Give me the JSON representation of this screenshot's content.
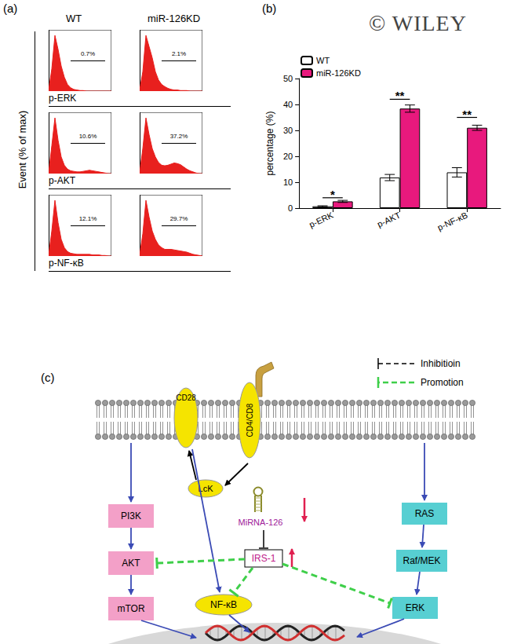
{
  "panel_labels": [
    "(a)",
    "(b)",
    "(c)"
  ],
  "watermark": "© WILEY",
  "panel_a": {
    "columns": [
      "WT",
      "miR-126KD"
    ],
    "ylabel": "Event (% of max)",
    "row_labels": [
      "p-ERK",
      "p-AKT",
      "p-NF-κB"
    ]
  },
  "chart_data": [
    {
      "type": "area",
      "color": "#e8201e",
      "xlim": [
        0,
        100
      ],
      "ylim": [
        0,
        110
      ],
      "tick_labels": false,
      "x": [
        0,
        5,
        10,
        15,
        20,
        25,
        30,
        35,
        40,
        45,
        50,
        55,
        60,
        65,
        70,
        75,
        80,
        85,
        90,
        95,
        100
      ],
      "values": [
        2,
        40,
        100,
        75,
        45,
        25,
        12,
        6,
        3,
        2,
        1,
        1,
        0,
        0,
        0,
        0,
        0,
        0,
        0,
        0,
        0
      ],
      "gate": {
        "from": 35,
        "to": 90,
        "label": "0.7%"
      }
    },
    {
      "type": "area",
      "color": "#e8201e",
      "xlim": [
        0,
        100
      ],
      "ylim": [
        0,
        110
      ],
      "tick_labels": false,
      "x": [
        0,
        5,
        10,
        15,
        20,
        25,
        30,
        35,
        40,
        45,
        50,
        55,
        60,
        65,
        70,
        75,
        80,
        85,
        90,
        95,
        100
      ],
      "values": [
        2,
        35,
        100,
        80,
        60,
        35,
        20,
        12,
        8,
        5,
        3,
        2,
        2,
        1,
        1,
        1,
        0,
        0,
        0,
        0,
        0
      ],
      "gate": {
        "from": 35,
        "to": 90,
        "label": "2.1%"
      }
    },
    {
      "type": "area",
      "color": "#e8201e",
      "xlim": [
        0,
        100
      ],
      "ylim": [
        0,
        110
      ],
      "tick_labels": false,
      "x": [
        0,
        5,
        10,
        15,
        20,
        25,
        30,
        35,
        40,
        45,
        50,
        55,
        60,
        65,
        70,
        75,
        80,
        85,
        90,
        95,
        100
      ],
      "values": [
        2,
        50,
        100,
        60,
        30,
        15,
        8,
        5,
        4,
        3,
        3,
        4,
        5,
        6,
        5,
        4,
        3,
        2,
        1,
        0,
        0
      ],
      "gate": {
        "from": 35,
        "to": 90,
        "label": "10.6%"
      }
    },
    {
      "type": "area",
      "color": "#e8201e",
      "xlim": [
        0,
        100
      ],
      "ylim": [
        0,
        110
      ],
      "tick_labels": false,
      "x": [
        0,
        5,
        10,
        15,
        20,
        25,
        30,
        35,
        40,
        45,
        50,
        55,
        60,
        65,
        70,
        75,
        80,
        85,
        90,
        95,
        100
      ],
      "values": [
        2,
        45,
        100,
        70,
        45,
        30,
        20,
        15,
        14,
        15,
        17,
        19,
        18,
        16,
        12,
        8,
        5,
        3,
        1,
        0,
        0
      ],
      "gate": {
        "from": 35,
        "to": 90,
        "label": "37.2%"
      }
    },
    {
      "type": "area",
      "color": "#e8201e",
      "xlim": [
        0,
        100
      ],
      "ylim": [
        0,
        110
      ],
      "tick_labels": false,
      "x": [
        0,
        5,
        10,
        15,
        20,
        25,
        30,
        35,
        40,
        45,
        50,
        55,
        60,
        65,
        70,
        75,
        80,
        85,
        90,
        95,
        100
      ],
      "values": [
        2,
        45,
        100,
        60,
        30,
        15,
        8,
        5,
        4,
        3,
        3,
        3,
        3,
        3,
        2,
        2,
        2,
        1,
        1,
        0,
        0
      ],
      "gate": {
        "from": 35,
        "to": 90,
        "label": "12.1%"
      }
    },
    {
      "type": "area",
      "color": "#e8201e",
      "xlim": [
        0,
        100
      ],
      "ylim": [
        0,
        110
      ],
      "tick_labels": false,
      "x": [
        0,
        5,
        10,
        15,
        20,
        25,
        30,
        35,
        40,
        45,
        50,
        55,
        60,
        65,
        70,
        75,
        80,
        85,
        90,
        95,
        100
      ],
      "values": [
        2,
        40,
        100,
        70,
        45,
        30,
        20,
        15,
        12,
        12,
        12,
        11,
        10,
        9,
        8,
        7,
        5,
        3,
        2,
        1,
        0
      ],
      "gate": {
        "from": 35,
        "to": 90,
        "label": "29.7%"
      }
    },
    {
      "type": "bar",
      "categories": [
        "p-ERK",
        "p-AKT",
        "p-NF-κB"
      ],
      "ylabel": "percentage (%)",
      "ylim": [
        0,
        50
      ],
      "yticks": [
        0,
        10,
        20,
        30,
        40,
        50
      ],
      "grid": false,
      "legend": "top-left",
      "series": [
        {
          "name": "WT",
          "color": "#ffffff",
          "values": [
            0.7,
            11.8,
            13.8
          ],
          "errors": [
            0.2,
            1.2,
            1.8
          ]
        },
        {
          "name": "miR-126KD",
          "color": "#e8197d",
          "values": [
            2.6,
            38.4,
            31.0
          ],
          "errors": [
            0.4,
            1.4,
            1.0
          ]
        }
      ],
      "annotations": [
        {
          "category": "p-ERK",
          "text": "*",
          "y": 4
        },
        {
          "category": "p-AKT",
          "text": "**",
          "y": 42
        },
        {
          "category": "p-NF-κB",
          "text": "**",
          "y": 35
        }
      ]
    }
  ],
  "diagram": {
    "key": {
      "inhibition": "Inhibitioin",
      "promotion": "Promotion"
    },
    "nodes": {
      "cd28": "CD28",
      "cd4cd8": "CD4/CD8",
      "lck": "LcK",
      "pi3k": "PI3K",
      "akt": "AKT",
      "mtor": "mTOR",
      "mirna": "MiRNA-126",
      "irs1": "IRS-1",
      "nfkb": "NF-κB",
      "ras": "RAS",
      "rafmek": "Raf/MEK",
      "erk": "ERK"
    }
  }
}
